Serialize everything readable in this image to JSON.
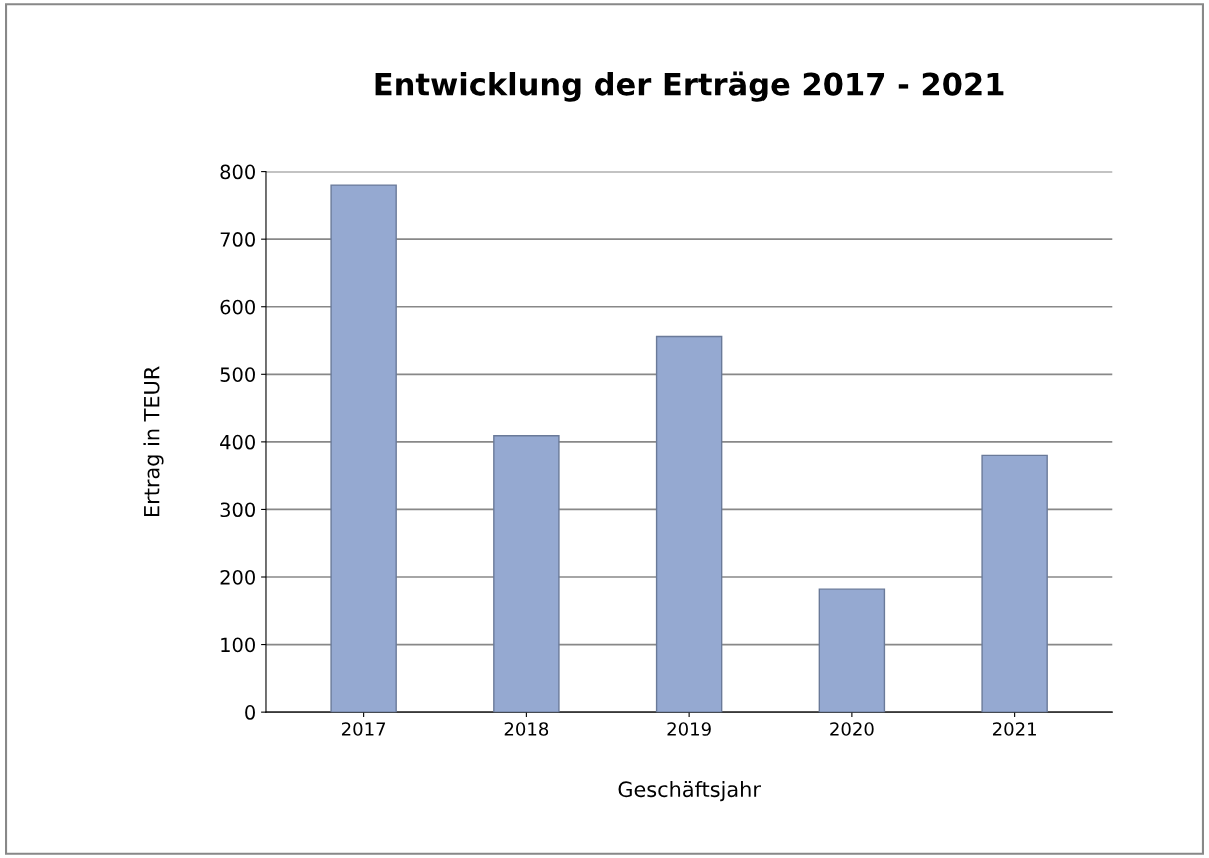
{
  "chart_data": {
    "type": "bar",
    "title": "Entwicklung der Erträge 2017 - 2021",
    "xlabel": "Geschäftsjahr",
    "ylabel": "Ertrag in TEUR",
    "categories": [
      "2017",
      "2018",
      "2019",
      "2020",
      "2021"
    ],
    "values": [
      780,
      409,
      556,
      182,
      380
    ],
    "color": "#95a9d1",
    "ylim": [
      0,
      800
    ],
    "yticks": [
      0,
      100,
      200,
      300,
      400,
      500,
      600,
      700,
      800
    ],
    "grid": "y"
  }
}
